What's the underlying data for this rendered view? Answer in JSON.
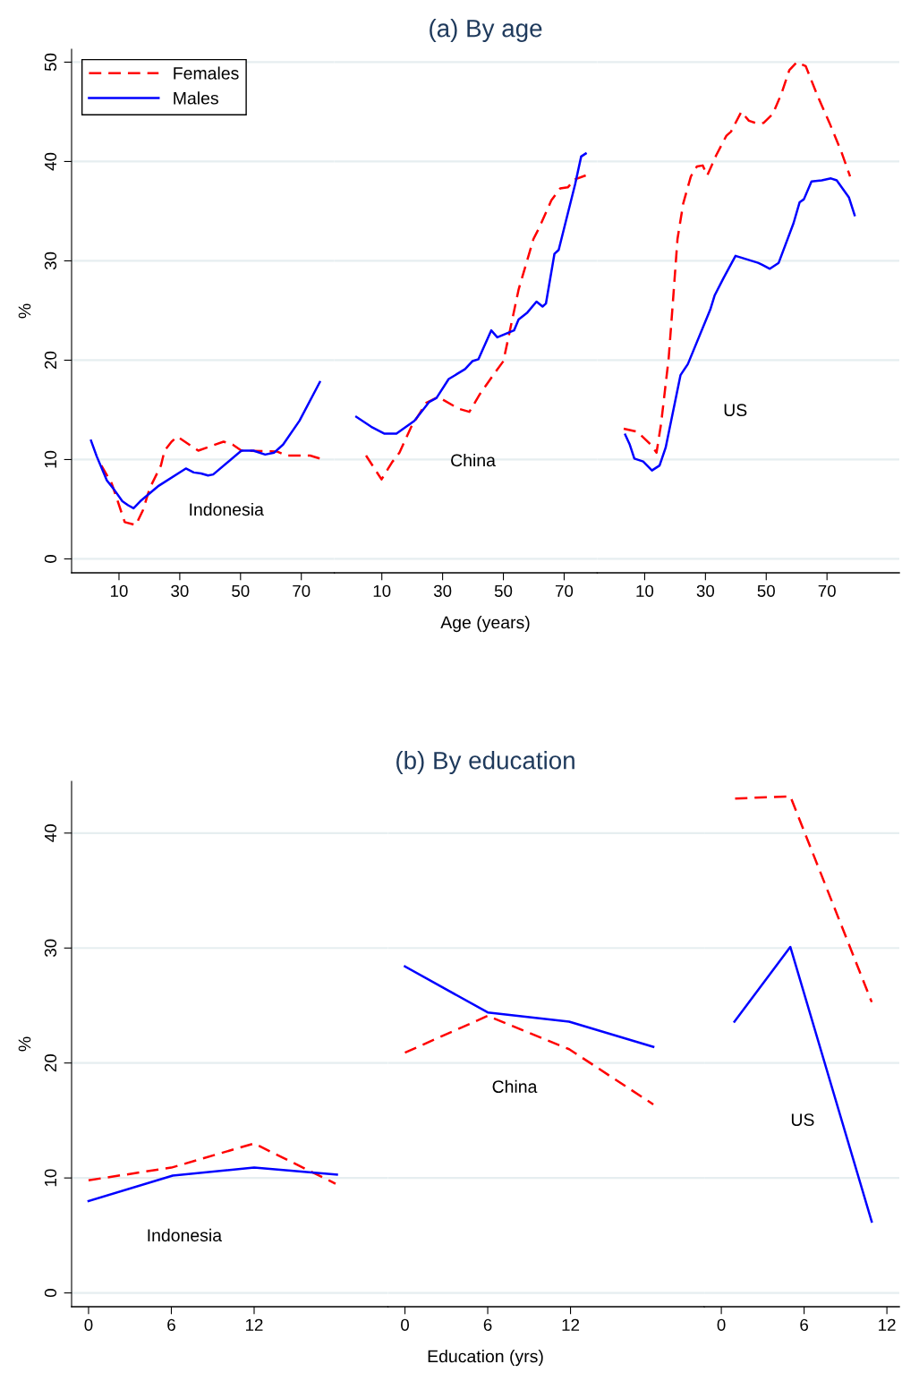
{
  "chart_data": [
    {
      "type": "line",
      "ylabel": "%",
      "xlim": [
        -5.6,
        80.9
      ],
      "xticks": [
        10,
        30,
        50,
        70
      ],
      "ylim": [
        -1.4,
        51.3
      ],
      "yticks": [
        0,
        10,
        20,
        30,
        40,
        50
      ],
      "grid": "y",
      "legend": "top left",
      "series": [
        {
          "name": "Females",
          "color": "#ff0000",
          "line_style": "dashed",
          "x": [
            4.2,
            7.6,
            11.9,
            15.5,
            17.9,
            20.1,
            23.8,
            25,
            27.3,
            29.2,
            36.1,
            44.4,
            47.4,
            50.3,
            62.1,
            65,
            72.9,
            77.3
          ],
          "values": [
            9.4,
            7.6,
            3.7,
            3.4,
            4.9,
            7.1,
            9.4,
            10.9,
            11.8,
            12.3,
            10.9,
            11.8,
            11.5,
            10.9,
            10.8,
            10.4,
            10.4,
            10.0
          ]
        },
        {
          "name": "Males",
          "color": "#0000ff",
          "line_style": "solid",
          "x": [
            0.8,
            2.7,
            6,
            8.1,
            11.1,
            13,
            14.8,
            17,
            22.8,
            32,
            34.6,
            37,
            39.3,
            41,
            50.3,
            54.2,
            58.1,
            61.1,
            64,
            69.4,
            76.1
          ],
          "values": [
            11.9,
            10.3,
            7.9,
            7.1,
            5.8,
            5.4,
            5.1,
            5.8,
            7.3,
            9.1,
            8.7,
            8.6,
            8.4,
            8.5,
            10.9,
            10.9,
            10.5,
            10.7,
            11.5,
            13.9,
            17.8
          ]
        }
      ],
      "annotations": [
        "Indonesia"
      ]
    },
    {
      "type": "line",
      "title": "(a) By age",
      "xlabel": "Age (years)",
      "xlim": [
        -5.6,
        80.9
      ],
      "xticks": [
        10,
        30,
        50,
        70
      ],
      "ylim": [
        -1.4,
        51.3
      ],
      "yticks": [
        0,
        10,
        20,
        30,
        40,
        50
      ],
      "grid": "y",
      "tick_labels": "x",
      "series": [
        {
          "color": "#ff0000",
          "line_style": "dashed",
          "x": [
            4.8,
            9.9,
            13.3,
            15.8,
            19.7,
            24.6,
            28.5,
            35.4,
            38.8,
            42.3,
            47.1,
            50,
            52.1,
            55,
            59.9,
            61.9,
            65.8,
            68.7,
            71.2,
            73.6,
            77.1
          ],
          "values": [
            10.4,
            8.0,
            9.7,
            10.7,
            13.3,
            15.7,
            16.3,
            15.1,
            14.8,
            16.6,
            18.7,
            19.9,
            22.9,
            27.1,
            32.2,
            33.4,
            36.1,
            37.3,
            37.4,
            38.2,
            38.6
          ]
        },
        {
          "color": "#0000ff",
          "line_style": "solid",
          "x": [
            1.6,
            6.5,
            10.9,
            14.8,
            20.7,
            25.6,
            28,
            32,
            37.4,
            39.8,
            41.8,
            46,
            48,
            53.5,
            55,
            57.9,
            60.9,
            62.9,
            64,
            66.8,
            68.2,
            73.6,
            75.6,
            77.1
          ],
          "values": [
            14.3,
            13.3,
            12.6,
            12.6,
            13.9,
            15.8,
            16.2,
            18.1,
            19.1,
            19.9,
            20.1,
            23.0,
            22.3,
            23.0,
            24.1,
            24.8,
            25.9,
            25.4,
            25.7,
            30.7,
            31.1,
            37.7,
            40.5,
            40.8
          ]
        }
      ],
      "annotations": [
        "China"
      ]
    },
    {
      "type": "line",
      "xlim": [
        -5.6,
        93.8
      ],
      "xticks": [
        10,
        30,
        50,
        70
      ],
      "ylim": [
        -1.4,
        51.3
      ],
      "yticks": [
        0,
        10,
        20,
        30,
        40,
        50
      ],
      "grid": "y",
      "tick_labels": "x",
      "series": [
        {
          "color": "#ff0000",
          "line_style": "dashed",
          "x": [
            3.1,
            7.6,
            12,
            13.9,
            15.4,
            17.9,
            19.3,
            20.8,
            22.7,
            25.2,
            27.2,
            29.1,
            30.6,
            33.5,
            36.9,
            38.4,
            41.8,
            44.3,
            47.3,
            49.2,
            52.2,
            55.1,
            57.6,
            60.1,
            63,
            66.9,
            70.8,
            74.7,
            77.6
          ],
          "values": [
            13.1,
            12.8,
            11.5,
            10.7,
            13.6,
            20.2,
            25.9,
            32.2,
            35.8,
            38.5,
            39.5,
            39.6,
            38.6,
            40.6,
            42.6,
            43.0,
            45.0,
            44.1,
            43.8,
            43.9,
            44.8,
            46.9,
            49.2,
            50.0,
            49.6,
            46.6,
            43.9,
            41.0,
            38.5
          ]
        },
        {
          "color": "#0000ff",
          "line_style": "solid",
          "x": [
            3.6,
            5.1,
            6.6,
            9.5,
            12.4,
            14.9,
            16.9,
            21.8,
            24.2,
            31.6,
            33,
            36,
            39.9,
            47.3,
            48.7,
            51.2,
            54.1,
            59,
            61,
            62.4,
            64.9,
            68.3,
            71.3,
            73.2,
            77.2,
            79.1
          ],
          "values": [
            12.5,
            11.5,
            10.1,
            9.8,
            8.9,
            9.4,
            11.2,
            18.5,
            19.6,
            25.1,
            26.5,
            28.3,
            30.5,
            29.8,
            29.6,
            29.2,
            29.8,
            33.8,
            35.9,
            36.2,
            38.0,
            38.1,
            38.3,
            38.1,
            36.4,
            34.6
          ]
        }
      ],
      "annotations": [
        "US"
      ]
    },
    {
      "type": "line",
      "ylabel": "%",
      "xlim": [
        -1.23,
        21.7
      ],
      "xticks": [
        0,
        6,
        12
      ],
      "ylim": [
        -1.2,
        44.5
      ],
      "yticks": [
        0,
        10,
        20,
        30,
        40
      ],
      "grid": "y",
      "series": [
        {
          "color": "#ff0000",
          "line_style": "dashed",
          "x": [
            0,
            6,
            12,
            17.9
          ],
          "values": [
            9.8,
            10.9,
            13.0,
            9.5
          ]
        },
        {
          "color": "#0000ff",
          "line_style": "solid",
          "x": [
            0,
            6.1,
            12,
            18
          ],
          "values": [
            8.0,
            10.2,
            10.9,
            10.3
          ]
        }
      ],
      "annotations": [
        "Indonesia"
      ]
    },
    {
      "type": "line",
      "title": "(b) By education",
      "xlabel": "Education (yrs)",
      "xlim": [
        -1.23,
        21.7
      ],
      "xticks": [
        0,
        6,
        12
      ],
      "ylim": [
        -1.2,
        44.5
      ],
      "yticks": [
        0,
        10,
        20,
        30,
        40
      ],
      "grid": "y",
      "tick_labels": "x",
      "series": [
        {
          "color": "#ff0000",
          "line_style": "dashed",
          "x": [
            0,
            6,
            11.9,
            18
          ],
          "values": [
            20.9,
            24.1,
            21.2,
            16.4
          ]
        },
        {
          "color": "#0000ff",
          "line_style": "solid",
          "x": [
            0,
            6,
            11.9,
            18
          ],
          "values": [
            28.4,
            24.4,
            23.6,
            21.4
          ]
        }
      ],
      "annotations": [
        "China"
      ]
    },
    {
      "type": "line",
      "xlim": [
        -1.23,
        12.9
      ],
      "xticks": [
        0,
        6,
        12
      ],
      "ylim": [
        -1.2,
        44.5
      ],
      "yticks": [
        0,
        10,
        20,
        30,
        40
      ],
      "grid": "y",
      "tick_labels": "x",
      "series": [
        {
          "color": "#ff0000",
          "line_style": "dashed",
          "x": [
            1,
            5,
            10.9
          ],
          "values": [
            43.0,
            43.2,
            25.3
          ]
        },
        {
          "color": "#0000ff",
          "line_style": "solid",
          "x": [
            0.95,
            5,
            10.9
          ],
          "values": [
            23.6,
            30.1,
            6.2
          ]
        }
      ],
      "annotations": [
        "US"
      ]
    }
  ]
}
